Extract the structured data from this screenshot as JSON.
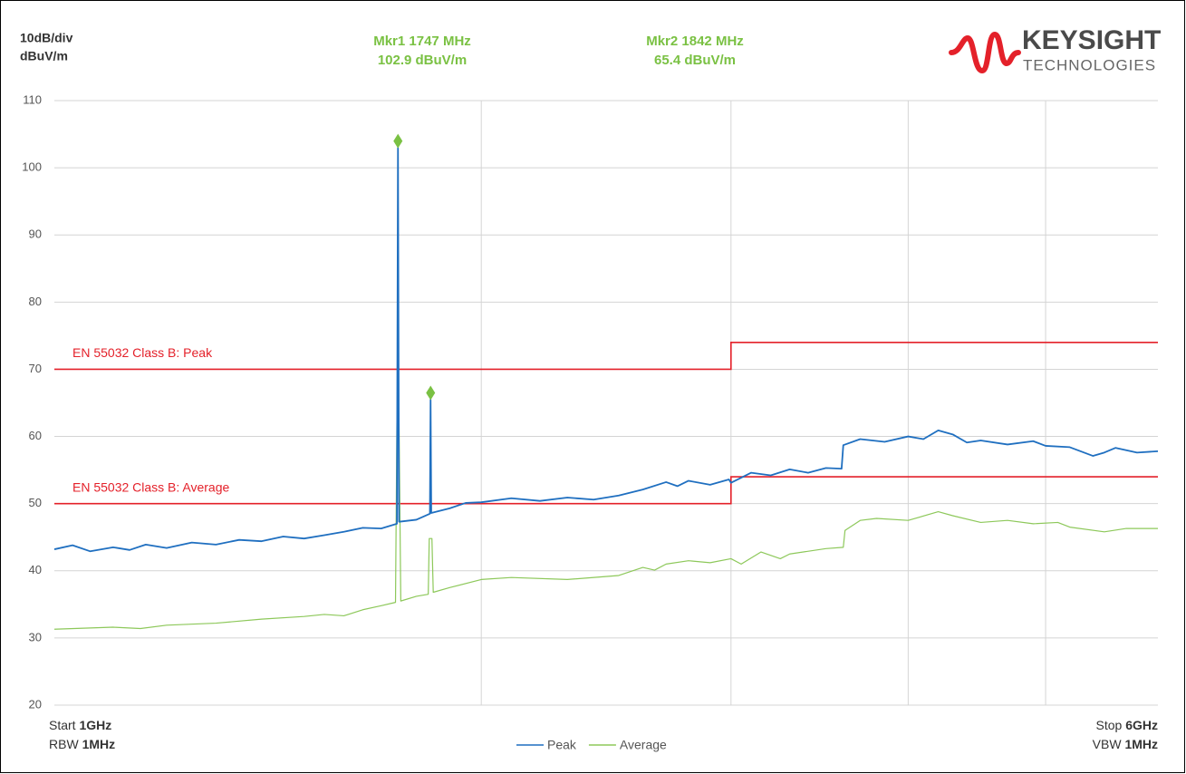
{
  "chart_data": {
    "type": "line",
    "scale_label": "10dB/div",
    "unit_label": "dBuV/m",
    "brand": "KEYSIGHT",
    "brand_sub": "TECHNOLOGIES",
    "xscale": "log",
    "xlim": [
      1000,
      6000
    ],
    "xticks": [
      2000,
      3000,
      4000,
      5000
    ],
    "xtick_labels": false,
    "ylim": [
      20,
      110
    ],
    "yticks": [
      20,
      30,
      40,
      50,
      60,
      70,
      80,
      90,
      100,
      110
    ],
    "grid": true,
    "legend": "bottom",
    "footer": {
      "start": "Start",
      "start_value": "1GHz",
      "rbw": "RBW",
      "rbw_value": "1MHz",
      "stop": "Stop",
      "stop_value": "6GHz",
      "vbw": "VBW",
      "vbw_value": "1MHz"
    },
    "markers": [
      {
        "name": "Mkr1",
        "x": 1747,
        "x_label": "1747 MHz",
        "value": 102.9,
        "value_label": "102.9 dBuV/m",
        "color": "#7ac143"
      },
      {
        "name": "Mkr2",
        "x": 1842,
        "x_label": "1842 MHz",
        "value": 65.4,
        "value_label": "65.4 dBuV/m",
        "color": "#7ac143"
      }
    ],
    "limits": [
      {
        "name": "EN 55032 Class B: Peak",
        "color": "#e4212a",
        "x": [
          1000,
          3000,
          3000,
          6000
        ],
        "values": [
          70,
          70,
          74,
          74
        ]
      },
      {
        "name": "EN 55032 Class B: Average",
        "color": "#e4212a",
        "x": [
          1000,
          3000,
          3000,
          6000
        ],
        "values": [
          50,
          50,
          54,
          54
        ]
      }
    ],
    "series": [
      {
        "name": "Peak",
        "color": "#1f6fc0",
        "x": [
          1000,
          1030,
          1060,
          1100,
          1130,
          1160,
          1200,
          1250,
          1300,
          1350,
          1400,
          1450,
          1500,
          1550,
          1600,
          1650,
          1700,
          1744,
          1747,
          1750,
          1800,
          1840,
          1842,
          1844,
          1900,
          1950,
          2000,
          2100,
          2200,
          2300,
          2400,
          2500,
          2600,
          2700,
          2750,
          2800,
          2900,
          2990,
          3000,
          3100,
          3200,
          3300,
          3400,
          3500,
          3590,
          3600,
          3700,
          3850,
          4000,
          4100,
          4200,
          4300,
          4400,
          4500,
          4700,
          4900,
          5000,
          5200,
          5400,
          5500,
          5600,
          5800,
          6000
        ],
        "values": [
          43.2,
          43.8,
          42.9,
          43.5,
          43.1,
          43.9,
          43.4,
          44.2,
          43.9,
          44.6,
          44.4,
          45.1,
          44.8,
          45.3,
          45.8,
          46.4,
          46.3,
          47,
          103,
          47.3,
          47.6,
          48.5,
          65.5,
          48.6,
          49.3,
          50.1,
          50.2,
          50.8,
          50.4,
          50.9,
          50.6,
          51.2,
          52.1,
          53.2,
          52.6,
          53.4,
          52.8,
          53.6,
          53.1,
          54.6,
          54.2,
          55.1,
          54.6,
          55.3,
          55.2,
          58.7,
          59.6,
          59.2,
          60,
          59.6,
          60.9,
          60.3,
          59.1,
          59.4,
          58.8,
          59.3,
          58.6,
          58.4,
          57.1,
          57.6,
          58.3,
          57.6,
          57.8
        ]
      },
      {
        "name": "Average",
        "color": "#8dc85a",
        "x": [
          1000,
          1100,
          1150,
          1200,
          1300,
          1400,
          1500,
          1550,
          1600,
          1650,
          1700,
          1740,
          1744,
          1750,
          1755,
          1800,
          1835,
          1838,
          1846,
          1850,
          1900,
          2000,
          2100,
          2300,
          2500,
          2600,
          2650,
          2700,
          2800,
          2900,
          3000,
          3050,
          3150,
          3250,
          3300,
          3500,
          3600,
          3610,
          3700,
          3800,
          4000,
          4200,
          4300,
          4500,
          4700,
          4900,
          5100,
          5200,
          5500,
          5700,
          6000
        ],
        "values": [
          31.3,
          31.6,
          31.4,
          31.9,
          32.2,
          32.8,
          33.2,
          33.5,
          33.3,
          34.2,
          34.8,
          35.3,
          62,
          62,
          35.5,
          36.2,
          36.5,
          44.8,
          44.8,
          36.8,
          37.5,
          38.7,
          39,
          38.7,
          39.3,
          40.5,
          40.1,
          41,
          41.5,
          41.2,
          41.8,
          41,
          42.8,
          41.8,
          42.5,
          43.3,
          43.5,
          46,
          47.5,
          47.8,
          47.5,
          48.8,
          48.2,
          47.2,
          47.5,
          47,
          47.2,
          46.5,
          45.8,
          46.3,
          46.3
        ]
      }
    ]
  }
}
